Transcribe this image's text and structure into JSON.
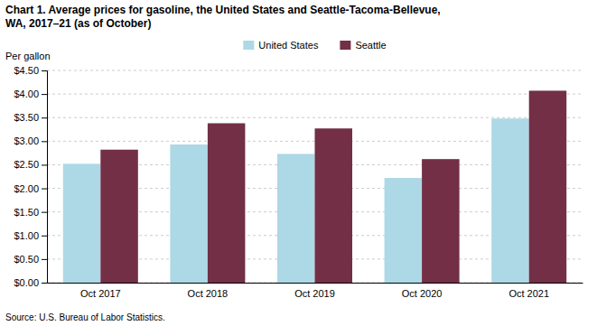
{
  "chart_data": {
    "type": "bar",
    "title": "Chart 1. Average prices for gasoline, the United States and Seattle-Tacoma-Bellevue,\nWA, 2017–21 (as of October)",
    "y_label": "Per gallon",
    "source": "Source: U.S. Bureau of Labor Statistics.",
    "categories": [
      "Oct 2017",
      "Oct 2018",
      "Oct 2019",
      "Oct 2020",
      "Oct 2021"
    ],
    "series": [
      {
        "name": "United States",
        "color": "#ADD8E6",
        "values": [
          2.52,
          2.93,
          2.73,
          2.22,
          3.48
        ]
      },
      {
        "name": "Seattle",
        "color": "#722F45",
        "values": [
          2.82,
          3.38,
          3.27,
          2.62,
          4.07
        ]
      }
    ],
    "ylim": [
      0,
      4.5
    ],
    "yticks": [
      {
        "value": 0.0,
        "label": "$0.00"
      },
      {
        "value": 0.5,
        "label": "$0.50"
      },
      {
        "value": 1.0,
        "label": "$1.00"
      },
      {
        "value": 1.5,
        "label": "$1.50"
      },
      {
        "value": 2.0,
        "label": "$2.00"
      },
      {
        "value": 2.5,
        "label": "$2.50"
      },
      {
        "value": 3.0,
        "label": "$3.00"
      },
      {
        "value": 3.5,
        "label": "$3.50"
      },
      {
        "value": 4.0,
        "label": "$4.00"
      },
      {
        "value": 4.5,
        "label": "$4.50"
      }
    ],
    "grid": true,
    "legend": "top"
  }
}
